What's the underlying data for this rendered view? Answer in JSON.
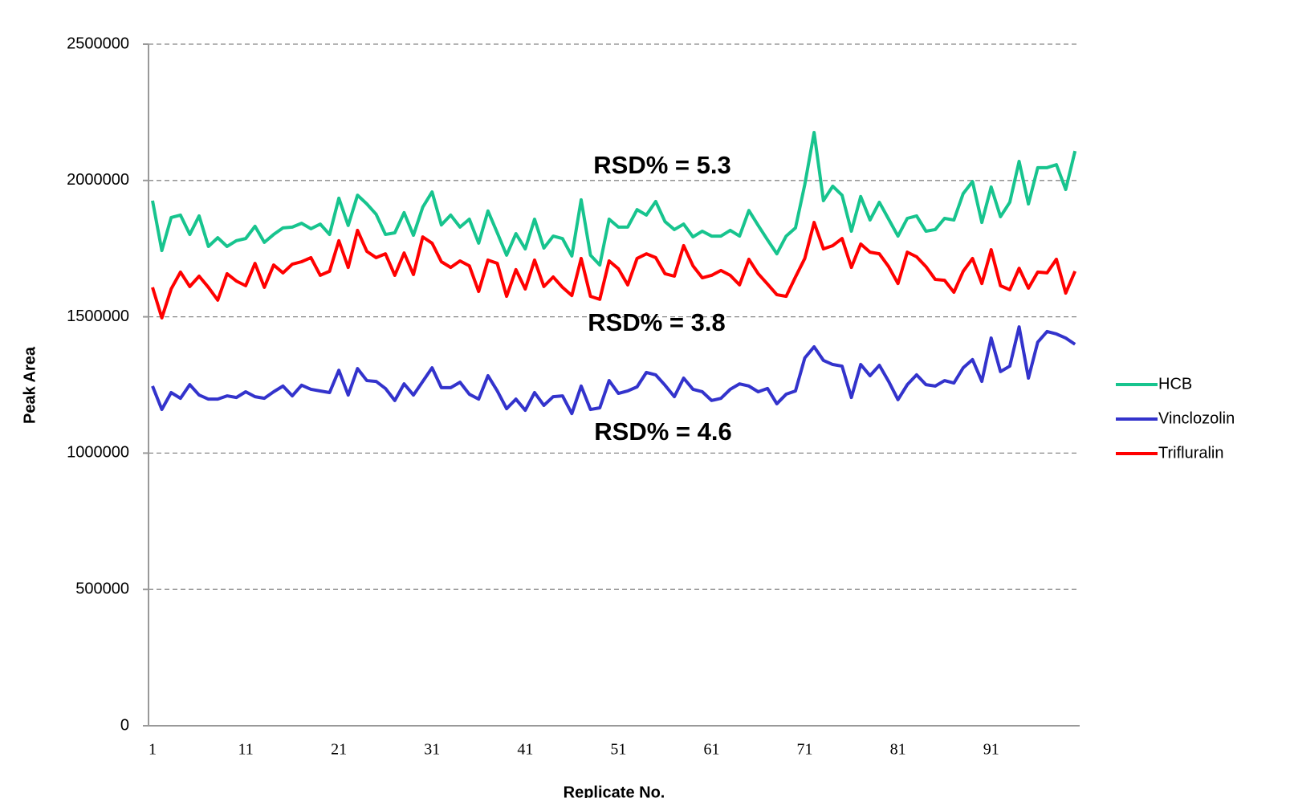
{
  "chart_data": {
    "type": "line",
    "annotations": [
      "RSD% = 5.3",
      "RSD% = 3.8",
      "RSD% = 4.6"
    ],
    "x_label": "Replicate No.",
    "y_label": "Peak Area",
    "x": [
      1,
      2,
      3,
      4,
      5,
      6,
      7,
      8,
      9,
      10,
      11,
      12,
      13,
      14,
      15,
      16,
      17,
      18,
      19,
      20,
      21,
      22,
      23,
      24,
      25,
      26,
      27,
      28,
      29,
      30,
      31,
      32,
      33,
      34,
      35,
      36,
      37,
      38,
      39,
      40,
      41,
      42,
      43,
      44,
      45,
      46,
      47,
      48,
      49,
      50,
      51,
      52,
      53,
      54,
      55,
      56,
      57,
      58,
      59,
      60,
      61,
      62,
      63,
      64,
      65,
      66,
      67,
      68,
      69,
      70,
      71,
      72,
      73,
      74,
      75,
      76,
      77,
      78,
      79,
      80,
      81,
      82,
      83,
      84,
      85,
      86,
      87,
      88,
      89,
      90,
      91,
      92,
      93,
      94,
      95,
      96,
      97,
      98,
      99,
      100
    ],
    "xlim": [
      0.57,
      100.5
    ],
    "xticks": [
      1,
      11,
      21,
      31,
      41,
      51,
      61,
      71,
      81,
      91
    ],
    "ylim": [
      0,
      2500000
    ],
    "yticks": [
      0,
      500000,
      1000000,
      1500000,
      2000000,
      2500000
    ],
    "grid": true,
    "legend": "right",
    "series": [
      {
        "name": "HCB",
        "color": "#17c48e",
        "values": [
          1926000,
          1743000,
          1864000,
          1873000,
          1802000,
          1870000,
          1758000,
          1790000,
          1758000,
          1779000,
          1787000,
          1832000,
          1773000,
          1802000,
          1826000,
          1829000,
          1843000,
          1823000,
          1840000,
          1802000,
          1935000,
          1835000,
          1946000,
          1914000,
          1876000,
          1802000,
          1808000,
          1882000,
          1799000,
          1902000,
          1958000,
          1837000,
          1873000,
          1829000,
          1858000,
          1770000,
          1888000,
          1808000,
          1726000,
          1805000,
          1749000,
          1858000,
          1752000,
          1796000,
          1787000,
          1723000,
          1929000,
          1726000,
          1690000,
          1858000,
          1829000,
          1829000,
          1893000,
          1873000,
          1923000,
          1849000,
          1820000,
          1840000,
          1793000,
          1814000,
          1796000,
          1796000,
          1817000,
          1796000,
          1890000,
          1835000,
          1782000,
          1731000,
          1796000,
          1826000,
          1985000,
          2176000,
          1926000,
          1979000,
          1946000,
          1814000,
          1941000,
          1855000,
          1920000,
          1858000,
          1796000,
          1861000,
          1870000,
          1814000,
          1820000,
          1861000,
          1855000,
          1952000,
          1996000,
          1846000,
          1976000,
          1867000,
          1920000,
          2070000,
          1914000,
          2047000,
          2047000,
          2058000,
          1967000,
          2108000
        ]
      },
      {
        "name": "Vinclozolin",
        "color": "#3333cc",
        "values": [
          1246000,
          1160000,
          1222000,
          1201000,
          1251000,
          1213000,
          1198000,
          1198000,
          1210000,
          1204000,
          1225000,
          1207000,
          1201000,
          1225000,
          1246000,
          1210000,
          1249000,
          1234000,
          1228000,
          1222000,
          1304000,
          1213000,
          1310000,
          1266000,
          1263000,
          1237000,
          1193000,
          1254000,
          1213000,
          1263000,
          1313000,
          1240000,
          1240000,
          1260000,
          1216000,
          1198000,
          1284000,
          1228000,
          1163000,
          1198000,
          1157000,
          1222000,
          1175000,
          1207000,
          1210000,
          1145000,
          1246000,
          1160000,
          1166000,
          1266000,
          1219000,
          1228000,
          1243000,
          1296000,
          1287000,
          1249000,
          1207000,
          1275000,
          1234000,
          1225000,
          1193000,
          1201000,
          1234000,
          1254000,
          1246000,
          1225000,
          1237000,
          1181000,
          1216000,
          1228000,
          1349000,
          1390000,
          1340000,
          1325000,
          1319000,
          1204000,
          1325000,
          1284000,
          1322000,
          1263000,
          1196000,
          1251000,
          1287000,
          1251000,
          1246000,
          1266000,
          1257000,
          1313000,
          1343000,
          1263000,
          1422000,
          1299000,
          1319000,
          1463000,
          1275000,
          1407000,
          1446000,
          1437000,
          1422000,
          1399000
        ]
      },
      {
        "name": "Trifluralin",
        "color": "#ff0000",
        "values": [
          1608000,
          1496000,
          1602000,
          1664000,
          1611000,
          1649000,
          1608000,
          1561000,
          1658000,
          1631000,
          1614000,
          1696000,
          1608000,
          1690000,
          1661000,
          1693000,
          1702000,
          1717000,
          1652000,
          1667000,
          1779000,
          1681000,
          1817000,
          1740000,
          1717000,
          1731000,
          1652000,
          1734000,
          1655000,
          1793000,
          1770000,
          1702000,
          1681000,
          1705000,
          1687000,
          1593000,
          1708000,
          1696000,
          1575000,
          1673000,
          1602000,
          1708000,
          1611000,
          1646000,
          1608000,
          1578000,
          1714000,
          1575000,
          1564000,
          1705000,
          1676000,
          1617000,
          1714000,
          1731000,
          1717000,
          1658000,
          1649000,
          1761000,
          1687000,
          1643000,
          1652000,
          1670000,
          1652000,
          1617000,
          1711000,
          1658000,
          1620000,
          1581000,
          1575000,
          1646000,
          1714000,
          1846000,
          1749000,
          1761000,
          1787000,
          1681000,
          1767000,
          1737000,
          1731000,
          1684000,
          1622000,
          1737000,
          1720000,
          1684000,
          1637000,
          1634000,
          1590000,
          1667000,
          1714000,
          1622000,
          1746000,
          1614000,
          1599000,
          1678000,
          1605000,
          1664000,
          1661000,
          1711000,
          1587000,
          1667000
        ]
      }
    ]
  }
}
